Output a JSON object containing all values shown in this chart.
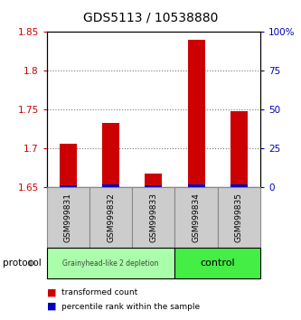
{
  "title": "GDS5113 / 10538880",
  "samples": [
    "GSM999831",
    "GSM999832",
    "GSM999833",
    "GSM999834",
    "GSM999835"
  ],
  "transformed_counts": [
    1.706,
    1.733,
    1.668,
    1.84,
    1.748
  ],
  "percentile_ranks": [
    1.5,
    2.0,
    1.5,
    2.0,
    2.0
  ],
  "ylim_left": [
    1.65,
    1.85
  ],
  "ylim_right": [
    0,
    100
  ],
  "yticks_left": [
    1.65,
    1.7,
    1.75,
    1.8,
    1.85
  ],
  "ytick_labels_left": [
    "1.65",
    "1.7",
    "1.75",
    "1.8",
    "1.85"
  ],
  "yticks_right": [
    0,
    25,
    50,
    75,
    100
  ],
  "ytick_labels_right": [
    "0",
    "25",
    "50",
    "75",
    "100%"
  ],
  "bar_color_red": "#cc0000",
  "bar_color_blue": "#0000bb",
  "bar_width": 0.4,
  "group1_label": "Grainyhead-like 2 depletion",
  "group2_label": "control",
  "group1_color": "#aaffaa",
  "group2_color": "#44ee44",
  "protocol_label": "protocol",
  "legend1_label": "transformed count",
  "legend2_label": "percentile rank within the sample",
  "tick_color_left": "#cc0000",
  "tick_color_right": "#0000bb",
  "background_color": "#ffffff",
  "plot_bg_color": "#ffffff",
  "dotted_line_color": "#777777",
  "box_color": "#cccccc",
  "box_edge_color": "#888888"
}
